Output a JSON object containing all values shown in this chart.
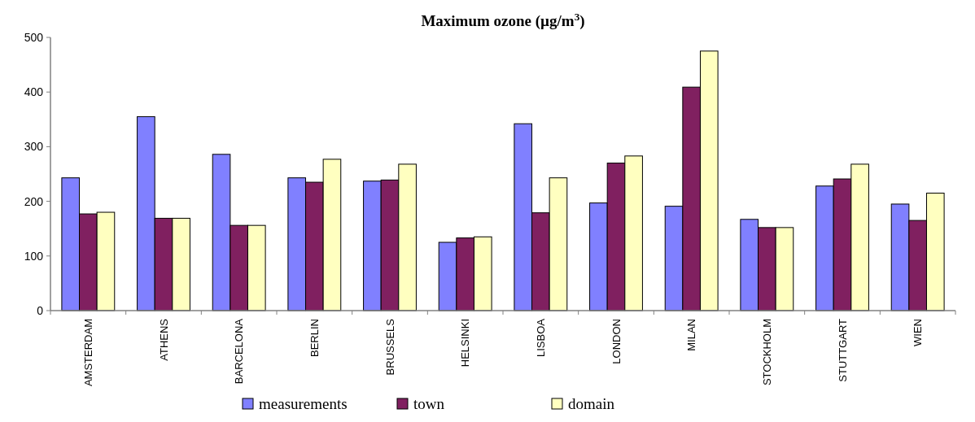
{
  "chart_data": {
    "type": "bar",
    "title": "Maximum ozone (µg/m$^{3}$)",
    "categories": [
      "AMSTERDAM",
      "ATHENS",
      "BARCELONA",
      "BERLIN",
      "BRUSSELS",
      "HELSINKI",
      "LISBOA",
      "LONDON",
      "MILAN",
      "STOCKHOLM",
      "STUTTGART",
      "WIEN"
    ],
    "series": [
      {
        "name": "measurements",
        "color": "#8080ff",
        "values": [
          243,
          355,
          286,
          243,
          237,
          125,
          342,
          197,
          191,
          167,
          228,
          195
        ]
      },
      {
        "name": "town",
        "color": "#802060",
        "values": [
          177,
          169,
          156,
          235,
          239,
          133,
          179,
          270,
          409,
          152,
          241,
          165
        ]
      },
      {
        "name": "domain",
        "color": "#ffffc0",
        "values": [
          180,
          169,
          156,
          277,
          268,
          135,
          243,
          283,
          475,
          152,
          268,
          215
        ]
      }
    ],
    "ylim": [
      0,
      500
    ],
    "yticks": [
      0,
      100,
      200,
      300,
      400,
      500
    ],
    "grid": false,
    "legend": "bottom"
  }
}
